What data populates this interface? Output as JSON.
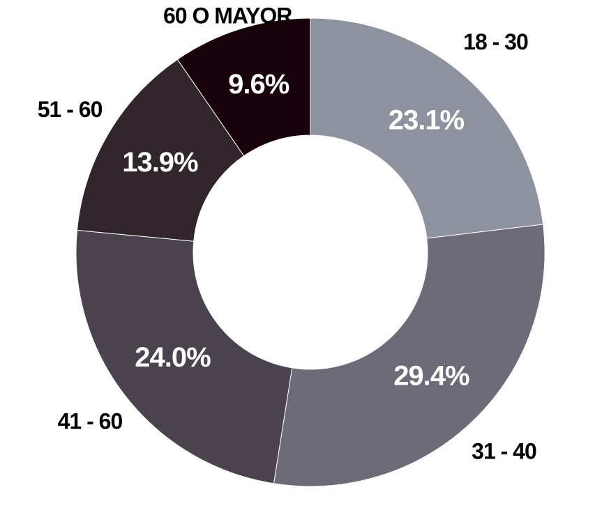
{
  "chart_data": {
    "type": "donut",
    "categories": [
      "18 - 30",
      "31 - 40",
      "41 - 60",
      "51 - 60",
      "60 O MAYOR"
    ],
    "values": [
      23.1,
      29.4,
      24.0,
      13.9,
      9.6
    ],
    "value_labels": [
      "23.1%",
      "29.4%",
      "24.0%",
      "13.9%",
      "9.6%"
    ],
    "colors": [
      "#8e929f",
      "#6e6b78",
      "#4a434d",
      "#31262c",
      "#17020c"
    ]
  }
}
